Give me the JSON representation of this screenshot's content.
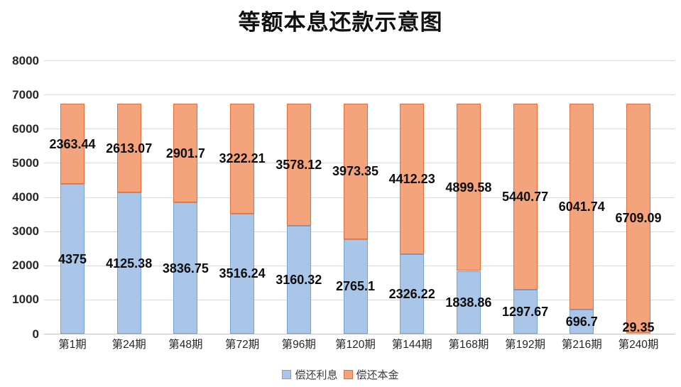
{
  "title": "等额本息还款示意图",
  "legend": {
    "items": [
      {
        "label": "偿还利息",
        "fill": "#a9c5e8",
        "border": "#74a3d4"
      },
      {
        "label": "偿还本金",
        "fill": "#f3a47d",
        "border": "#e0703b"
      }
    ]
  },
  "colors": {
    "interest_fill": "#a9c5e8",
    "interest_border": "#74a3d4",
    "principal_fill": "#f3a47d",
    "principal_border": "#e0703b",
    "gridline": "#d9d9d9",
    "axisline": "#bfbfbf",
    "title_text": "#111111",
    "tick_text": "#262626",
    "data_label_text": "#0d0d0d"
  },
  "chart_data": {
    "type": "bar",
    "stacked": true,
    "title": "等额本息还款示意图",
    "categories": [
      "第1期",
      "第24期",
      "第48期",
      "第72期",
      "第96期",
      "第120期",
      "第144期",
      "第168期",
      "第192期",
      "第216期",
      "第240期"
    ],
    "series": [
      {
        "name": "偿还利息",
        "values": [
          4375,
          4125.38,
          3836.75,
          3516.24,
          3160.32,
          2765.1,
          2326.22,
          1838.86,
          1297.67,
          696.7,
          29.35
        ]
      },
      {
        "name": "偿还本金",
        "values": [
          2363.44,
          2613.07,
          2901.7,
          3222.21,
          3578.12,
          3973.35,
          4412.23,
          4899.58,
          5440.77,
          6041.74,
          6709.09
        ]
      }
    ],
    "xlabel": "",
    "ylabel": "",
    "ylim": [
      0,
      8000
    ],
    "yticks": [
      0,
      1000,
      2000,
      3000,
      4000,
      5000,
      6000,
      7000,
      8000
    ],
    "grid": true,
    "legend_position": "bottom",
    "data_labels": true
  }
}
